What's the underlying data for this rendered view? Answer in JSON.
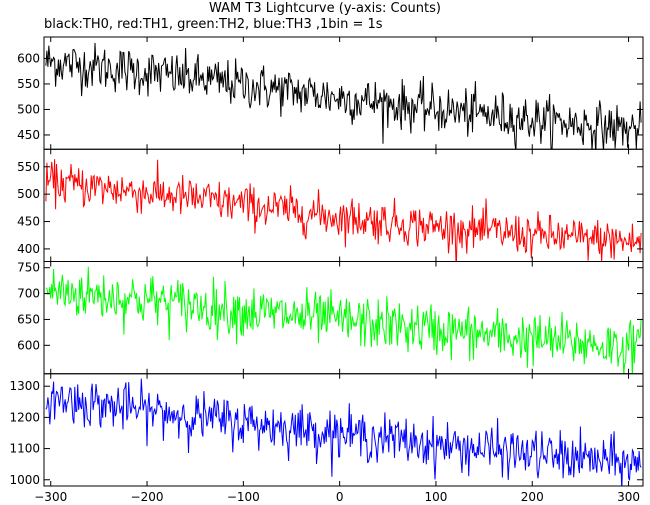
{
  "chart_data": {
    "type": "line",
    "title": "WAM T3 Lightcurve (y-axis: Counts)",
    "subtitle": "black:TH0, red:TH1, green:TH2, blue:TH3 ,1bin = 1s",
    "xlabel": "",
    "ylabel": "Counts",
    "xlim": [
      -307,
      315
    ],
    "x_ticks": [
      -300,
      -200,
      -100,
      0,
      100,
      200,
      300
    ],
    "grid": false,
    "legend": "none",
    "panels": [
      {
        "series": "TH0",
        "color": "#000000",
        "ylim": [
          422,
          642
        ],
        "y_ticks": [
          450,
          500,
          550,
          600
        ],
        "trend": {
          "x": [
            -300,
            -200,
            -100,
            0,
            100,
            200,
            300
          ],
          "y": [
            593,
            573,
            548,
            523,
            500,
            480,
            462
          ]
        },
        "noise_sd": 23
      },
      {
        "series": "TH1",
        "color": "#ff0000",
        "ylim": [
          377,
          582
        ],
        "y_ticks": [
          400,
          450,
          500,
          550
        ],
        "trend": {
          "x": [
            -300,
            -200,
            -100,
            0,
            100,
            200,
            300
          ],
          "y": [
            522,
            503,
            481,
            458,
            440,
            425,
            413
          ]
        },
        "noise_sd": 19
      },
      {
        "series": "TH2",
        "color": "#00ff00",
        "ylim": [
          545,
          762
        ],
        "y_ticks": [
          600,
          650,
          700,
          750
        ],
        "trend": {
          "x": [
            -300,
            -200,
            -100,
            0,
            100,
            200,
            300
          ],
          "y": [
            705,
            688,
            666,
            648,
            630,
            612,
            597
          ]
        },
        "noise_sd": 25
      },
      {
        "series": "TH3",
        "color": "#0000ff",
        "ylim": [
          980,
          1340
        ],
        "y_ticks": [
          1000,
          1100,
          1200,
          1300
        ],
        "trend": {
          "x": [
            -300,
            -200,
            -100,
            0,
            100,
            200,
            300
          ],
          "y": [
            1262,
            1222,
            1183,
            1150,
            1112,
            1083,
            1052
          ]
        },
        "noise_sd": 38
      }
    ]
  }
}
